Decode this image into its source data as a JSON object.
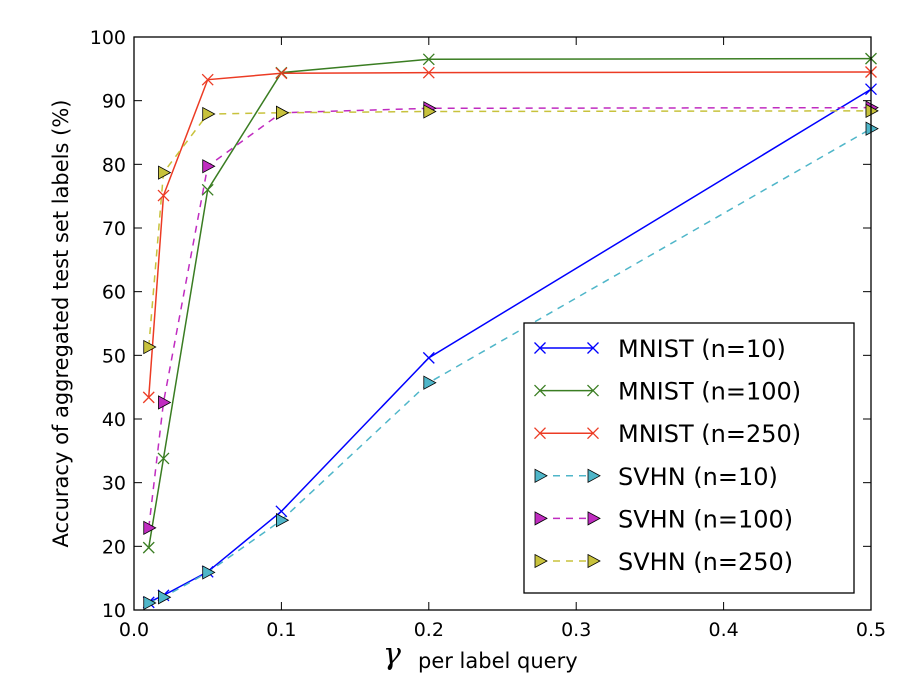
{
  "chart_data": {
    "type": "line",
    "xlabel_symbol": "γ",
    "xlabel": "per label query",
    "ylabel": "Accuracy of aggregated test set labels (%)",
    "xlim": [
      0.0,
      0.5
    ],
    "ylim": [
      10,
      100
    ],
    "xticks": [
      0.0,
      0.1,
      0.2,
      0.3,
      0.4,
      0.5
    ],
    "xtick_labels": [
      "0.0",
      "0.1",
      "0.2",
      "0.3",
      "0.4",
      "0.5"
    ],
    "yticks": [
      10,
      20,
      30,
      40,
      50,
      60,
      70,
      80,
      90,
      100
    ],
    "ytick_labels": [
      "10",
      "20",
      "30",
      "40",
      "50",
      "60",
      "70",
      "80",
      "90",
      "100"
    ],
    "grid": false,
    "legend_position": "bottom-right",
    "series": [
      {
        "name": "MNIST (n=10)",
        "color": "#0000ff",
        "dash": "solid",
        "marker": "x",
        "x": [
          0.01,
          0.02,
          0.05,
          0.1,
          0.2,
          0.5
        ],
        "y": [
          11.2,
          12.3,
          16.0,
          25.5,
          49.6,
          91.8
        ]
      },
      {
        "name": "MNIST (n=100)",
        "color": "#3a7d22",
        "dash": "solid",
        "marker": "x",
        "x": [
          0.01,
          0.02,
          0.05,
          0.1,
          0.2,
          0.5
        ],
        "y": [
          19.8,
          33.8,
          76.0,
          94.4,
          96.5,
          96.6
        ]
      },
      {
        "name": "MNIST (n=250)",
        "color": "#ec3b24",
        "dash": "solid",
        "marker": "x",
        "x": [
          0.01,
          0.02,
          0.05,
          0.1,
          0.2,
          0.5
        ],
        "y": [
          43.4,
          75.1,
          93.3,
          94.3,
          94.4,
          94.5
        ]
      },
      {
        "name": "SVHN (n=10)",
        "color": "#4fb6c9",
        "dash": "dashed",
        "marker": "triangle-right",
        "x": [
          0.01,
          0.02,
          0.05,
          0.1,
          0.2,
          0.5
        ],
        "y": [
          11.1,
          12.0,
          15.9,
          24.1,
          45.7,
          85.6
        ]
      },
      {
        "name": "SVHN (n=100)",
        "color": "#c02cc0",
        "dash": "dashed",
        "marker": "triangle-right",
        "x": [
          0.01,
          0.02,
          0.05,
          0.1,
          0.2,
          0.5
        ],
        "y": [
          22.9,
          42.6,
          79.7,
          88.1,
          88.8,
          88.9
        ]
      },
      {
        "name": "SVHN (n=250)",
        "color": "#c8c23c",
        "dash": "dashed",
        "marker": "triangle-right",
        "x": [
          0.01,
          0.02,
          0.05,
          0.1,
          0.2,
          0.5
        ],
        "y": [
          51.3,
          78.7,
          87.9,
          88.1,
          88.3,
          88.4
        ]
      }
    ]
  }
}
